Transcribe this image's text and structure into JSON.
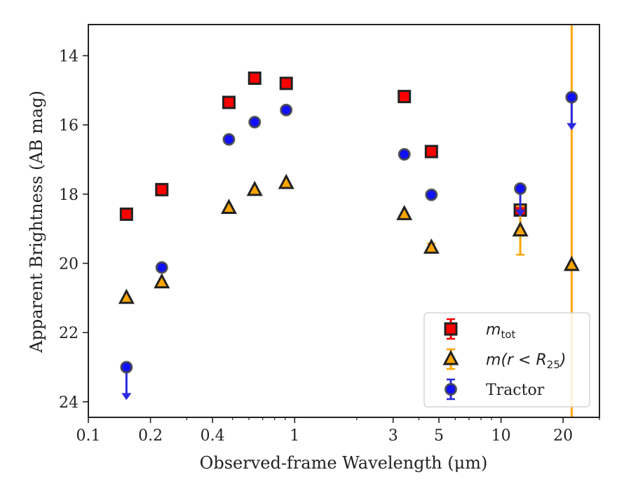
{
  "chart_data": {
    "type": "scatter",
    "title": "",
    "xlabel": "Observed-frame Wavelength (μm)",
    "ylabel": "Apparent Brightness (AB mag)",
    "xscale": "log",
    "xlim": [
      0.1,
      30
    ],
    "ylim": [
      24.45,
      13.1
    ],
    "y_inverted": true,
    "x_ticks": [
      {
        "value": 0.1,
        "label": "0.1"
      },
      {
        "value": 0.2,
        "label": "0.2"
      },
      {
        "value": 0.4,
        "label": "0.4"
      },
      {
        "value": 1,
        "label": "1"
      },
      {
        "value": 3,
        "label": "3"
      },
      {
        "value": 5,
        "label": "5"
      },
      {
        "value": 10,
        "label": "10"
      },
      {
        "value": 20,
        "label": "20"
      }
    ],
    "y_ticks": [
      {
        "value": 14,
        "label": "14"
      },
      {
        "value": 16,
        "label": "16"
      },
      {
        "value": 18,
        "label": "18"
      },
      {
        "value": 20,
        "label": "20"
      },
      {
        "value": 22,
        "label": "22"
      },
      {
        "value": 24,
        "label": "24"
      }
    ],
    "grid": false,
    "legend_position": "bottom-right",
    "legend": [
      {
        "key": "mtot",
        "text": "m",
        "sub": "tot",
        "post": "",
        "style": "math"
      },
      {
        "key": "mr25",
        "text": "m",
        "mid": "(r < R",
        "sub": "25",
        "post": ")",
        "style": "math"
      },
      {
        "key": "tractor",
        "text": "Tractor",
        "style": "plain"
      }
    ],
    "series": [
      {
        "key": "mtot",
        "marker": "square",
        "color": "#ff0000",
        "edge_color": "#222222",
        "error_color": "#ff0000",
        "points": [
          {
            "x": 0.153,
            "y": 18.58
          },
          {
            "x": 0.227,
            "y": 17.87
          },
          {
            "x": 0.48,
            "y": 15.35
          },
          {
            "x": 0.64,
            "y": 14.65
          },
          {
            "x": 0.91,
            "y": 14.8
          },
          {
            "x": 3.4,
            "y": 15.18
          },
          {
            "x": 4.6,
            "y": 16.77
          },
          {
            "x": 12.4,
            "y": 18.46
          }
        ]
      },
      {
        "key": "mr25",
        "marker": "triangle",
        "color": "#ffa500",
        "edge_color": "#222222",
        "error_color": "#ffa500",
        "points": [
          {
            "x": 0.153,
            "y": 21.0
          },
          {
            "x": 0.227,
            "y": 20.55
          },
          {
            "x": 0.48,
            "y": 18.4
          },
          {
            "x": 0.64,
            "y": 17.88
          },
          {
            "x": 0.91,
            "y": 17.68
          },
          {
            "x": 3.4,
            "y": 18.58
          },
          {
            "x": 4.6,
            "y": 19.55,
            "err_low": 0.12,
            "err_high": 0.12
          },
          {
            "x": 12.4,
            "y": 19.05,
            "err_low": 0.7,
            "err_high": 0.7
          },
          {
            "x": 22.0,
            "y": 20.05,
            "err_low": 100,
            "err_high": 100
          }
        ]
      },
      {
        "key": "tractor",
        "marker": "circle",
        "color": "#1010ff",
        "edge_color": "#444444",
        "error_color": "#2a2ae0",
        "points": [
          {
            "x": 0.153,
            "y": 23.0,
            "upper_limit": true,
            "arrow_to": 23.95
          },
          {
            "x": 0.227,
            "y": 20.12
          },
          {
            "x": 0.48,
            "y": 16.42
          },
          {
            "x": 0.64,
            "y": 15.92
          },
          {
            "x": 0.91,
            "y": 15.57
          },
          {
            "x": 3.4,
            "y": 16.85
          },
          {
            "x": 4.6,
            "y": 18.02
          },
          {
            "x": 12.4,
            "y": 17.84,
            "upper_limit": true,
            "arrow_to": 18.65
          },
          {
            "x": 22.0,
            "y": 15.2,
            "upper_limit": true,
            "arrow_to": 16.15
          }
        ]
      }
    ]
  }
}
